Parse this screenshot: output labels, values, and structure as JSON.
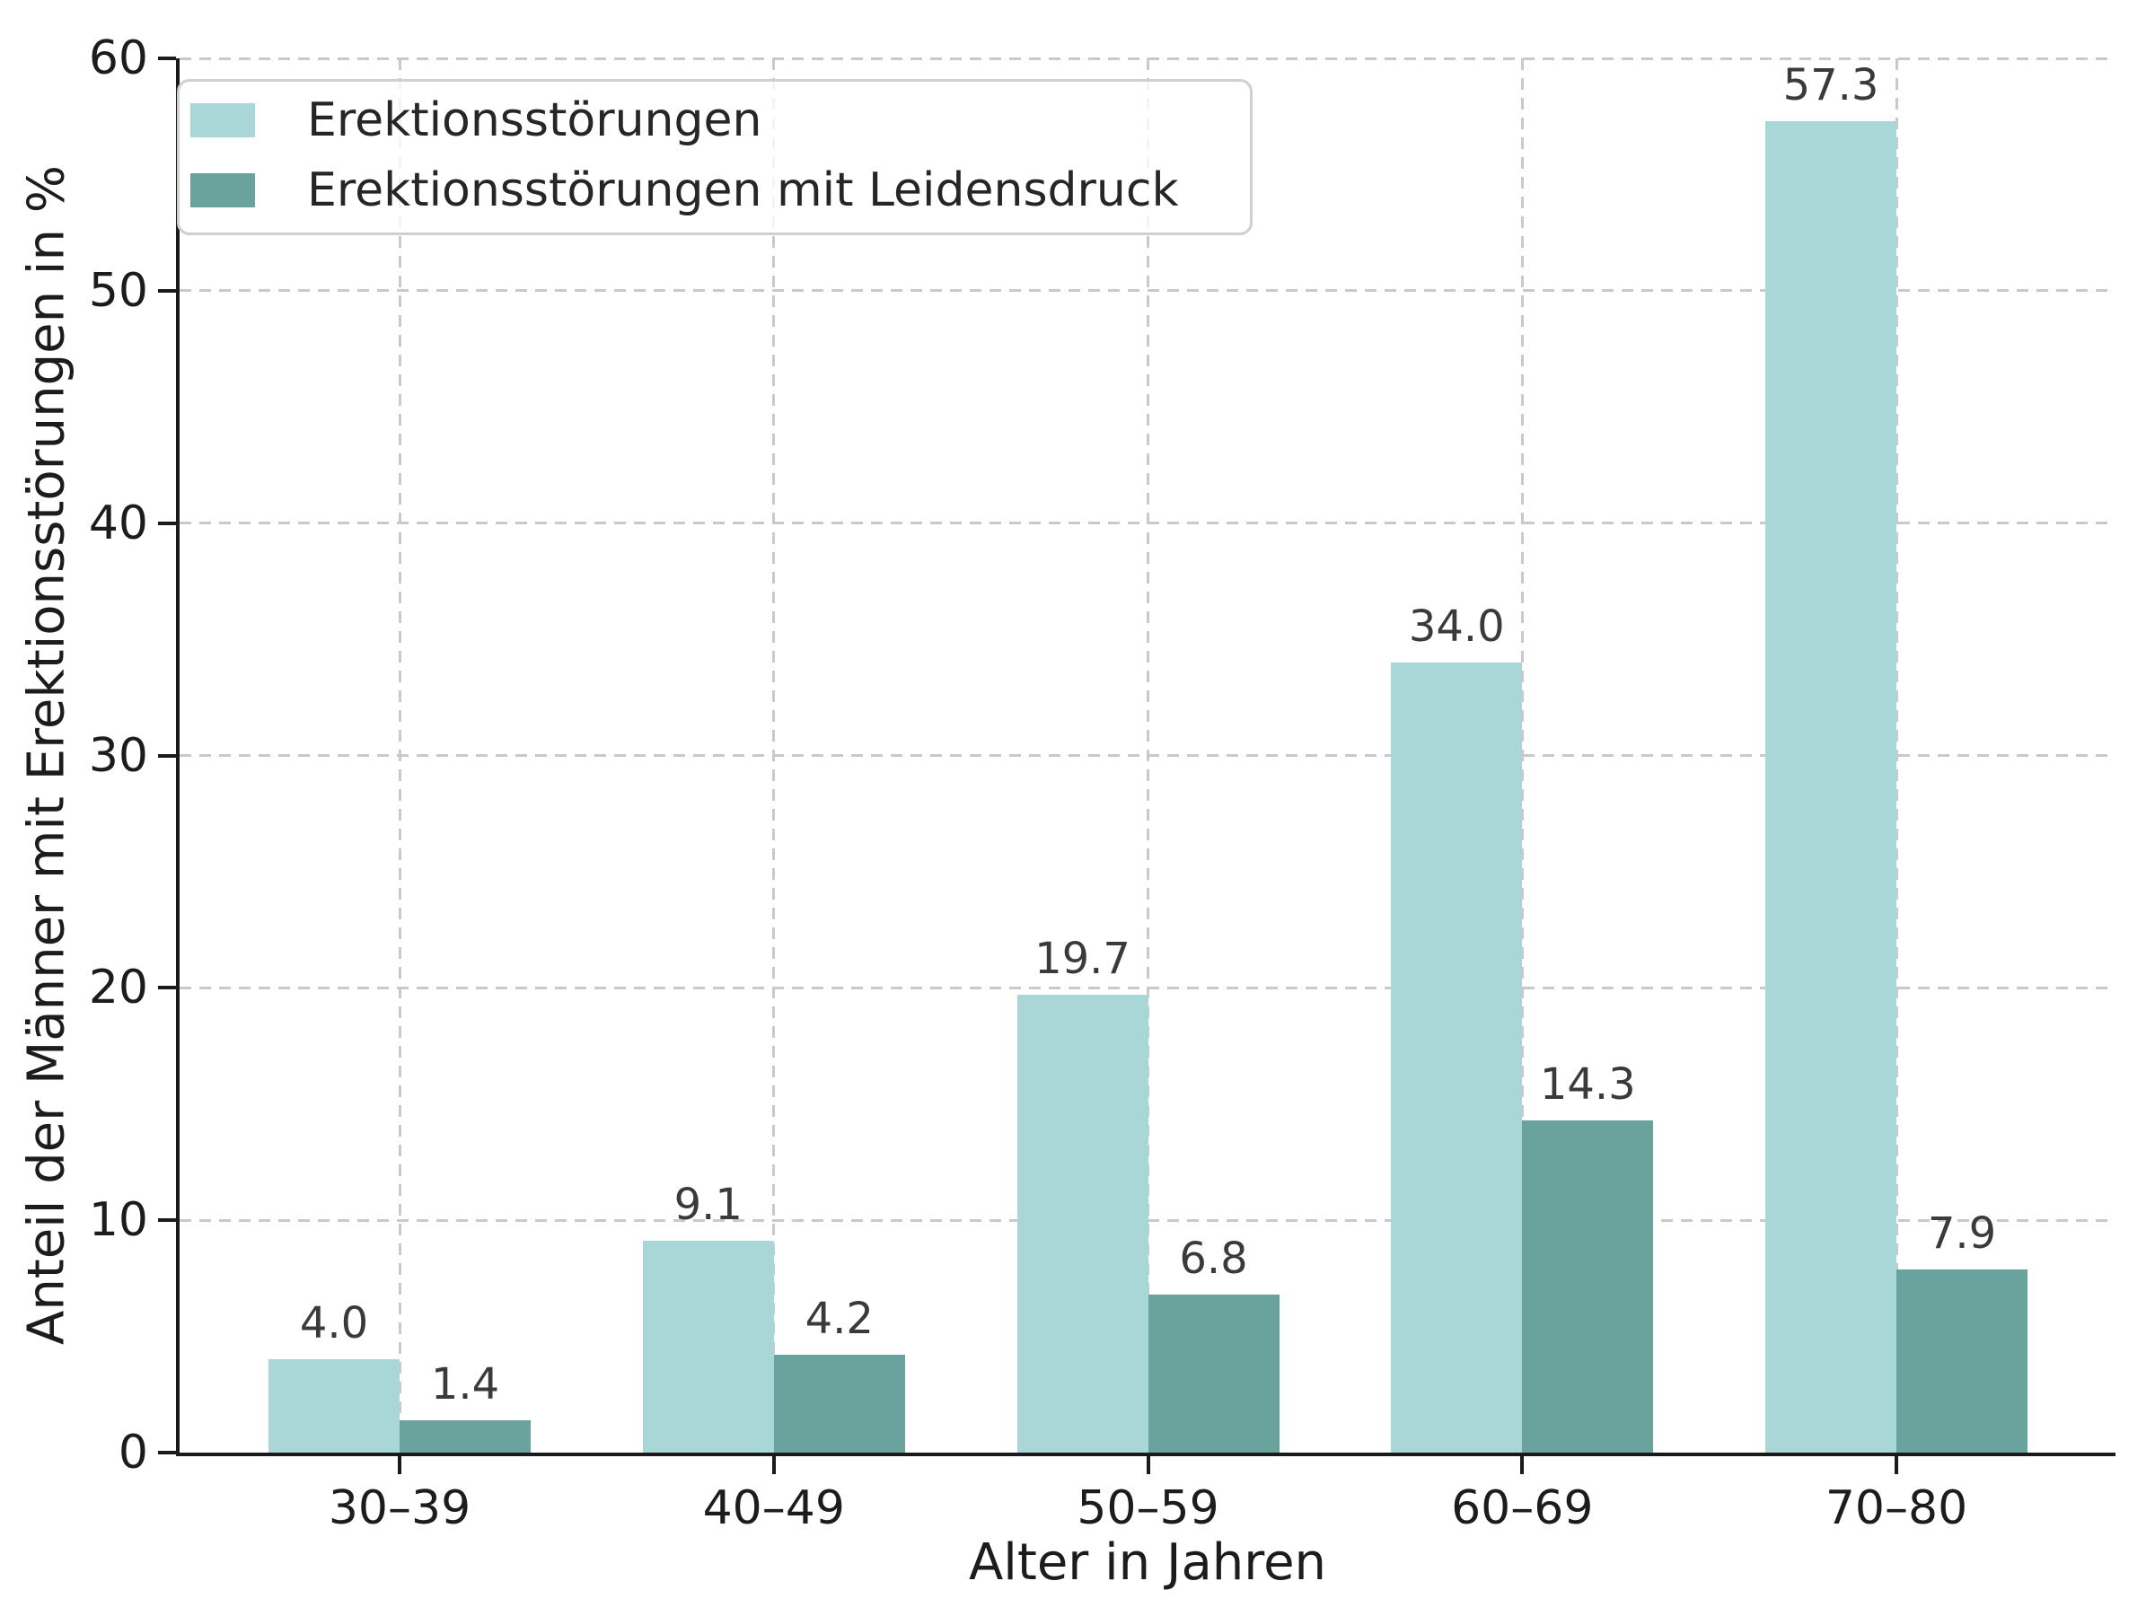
{
  "chart_data": {
    "type": "bar",
    "title": "",
    "xlabel": "Alter in Jahren",
    "ylabel": "Anteil der Männer mit Erektionsstörungen in %",
    "categories": [
      "30–39",
      "40–49",
      "50–59",
      "60–69",
      "70–80"
    ],
    "series": [
      {
        "name": "Erektionsstörungen",
        "color": "#a9d7d7",
        "values": [
          4.0,
          9.1,
          19.7,
          34.0,
          57.3
        ],
        "labels": [
          "4.0",
          "9.1",
          "19.7",
          "34.0",
          "57.3"
        ]
      },
      {
        "name": "Erektionsstörungen mit Leidensdruck",
        "color": "#6aa29e",
        "values": [
          1.4,
          4.2,
          6.8,
          14.3,
          7.9
        ],
        "labels": [
          "1.4",
          "4.2",
          "6.8",
          "14.3",
          "7.9"
        ]
      }
    ],
    "ylim": [
      0,
      60
    ],
    "yticks": [
      0,
      10,
      20,
      30,
      40,
      50,
      60
    ],
    "grid": {
      "on": true,
      "style": "dashed",
      "color": "#c9c9c9",
      "horizontal": true,
      "vertical": "category-centers"
    },
    "legend": {
      "position": "upper left"
    },
    "axis_color": "#1a1a1a",
    "value_label_color": "#3a3a3a"
  }
}
